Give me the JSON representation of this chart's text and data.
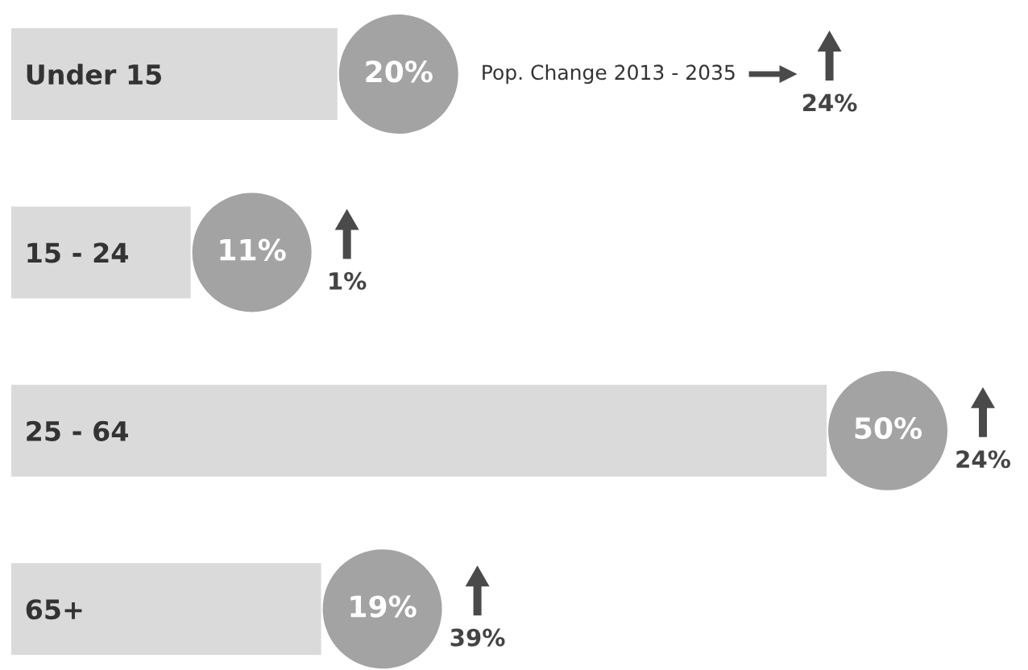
{
  "chart_data": {
    "type": "bar",
    "orientation": "horizontal",
    "categories": [
      "Under 15",
      "15 - 24",
      "25 - 64",
      "65+"
    ],
    "values": [
      20,
      11,
      50,
      19
    ],
    "value_labels": [
      "20%",
      "11%",
      "50%",
      "19%"
    ],
    "color": "#dadada",
    "tick_labels": "y",
    "annotations": [
      "Pop. Change 2013 - 2035",
      "24%",
      "1%",
      "24%",
      "39%"
    ]
  }
}
